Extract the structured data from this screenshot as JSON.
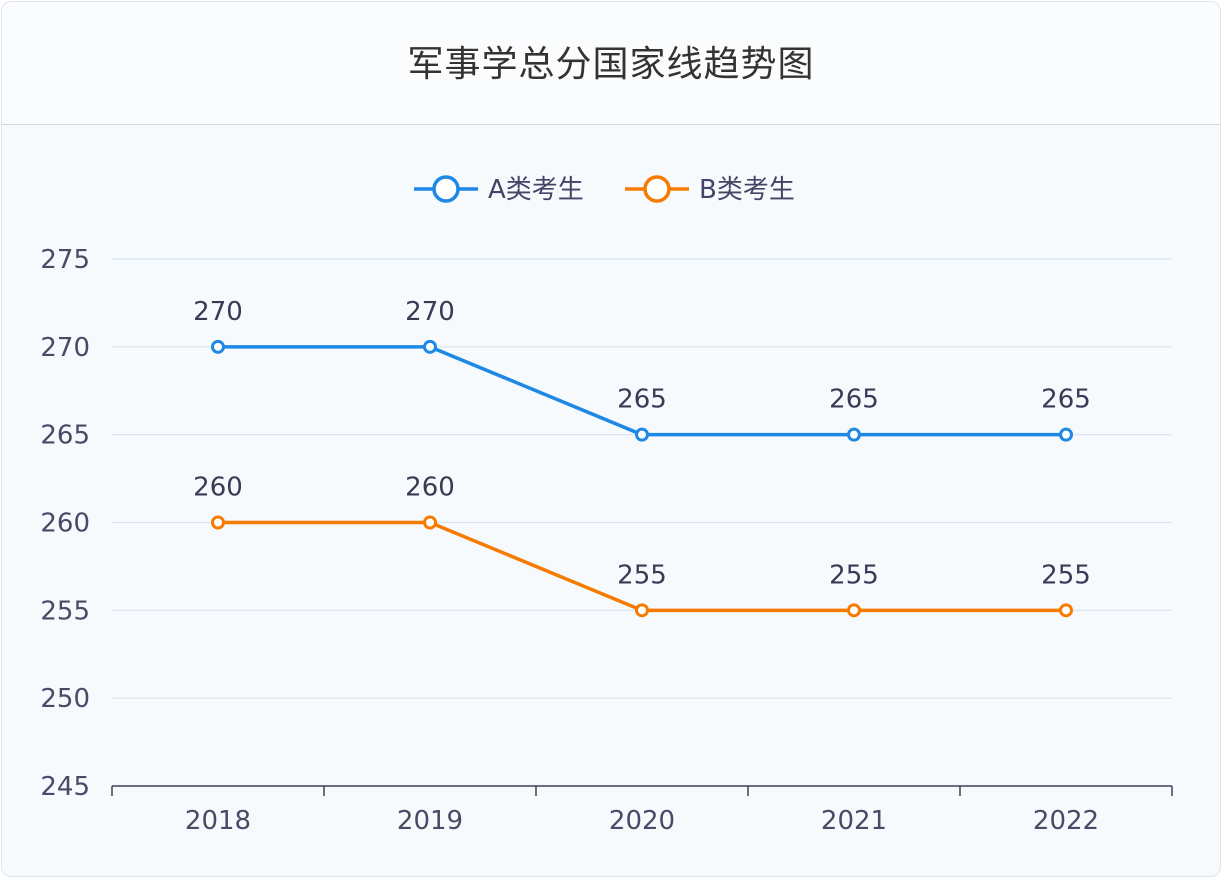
{
  "page": {
    "title": "军事学总分国家线趋势图"
  },
  "chart_data": {
    "type": "line",
    "title": "军事学总分国家线趋势图",
    "x": [
      "2018",
      "2019",
      "2020",
      "2021",
      "2022"
    ],
    "ylim": [
      245,
      275
    ],
    "yticks": [
      245,
      250,
      255,
      260,
      265,
      270,
      275
    ],
    "grid": true,
    "legend_position": "top-center",
    "series": [
      {
        "name": "A类考生",
        "color": "#1e88e5",
        "values": [
          270,
          270,
          265,
          265,
          265
        ]
      },
      {
        "name": "B类考生",
        "color": "#f57c00",
        "values": [
          260,
          260,
          255,
          255,
          255
        ]
      }
    ]
  }
}
